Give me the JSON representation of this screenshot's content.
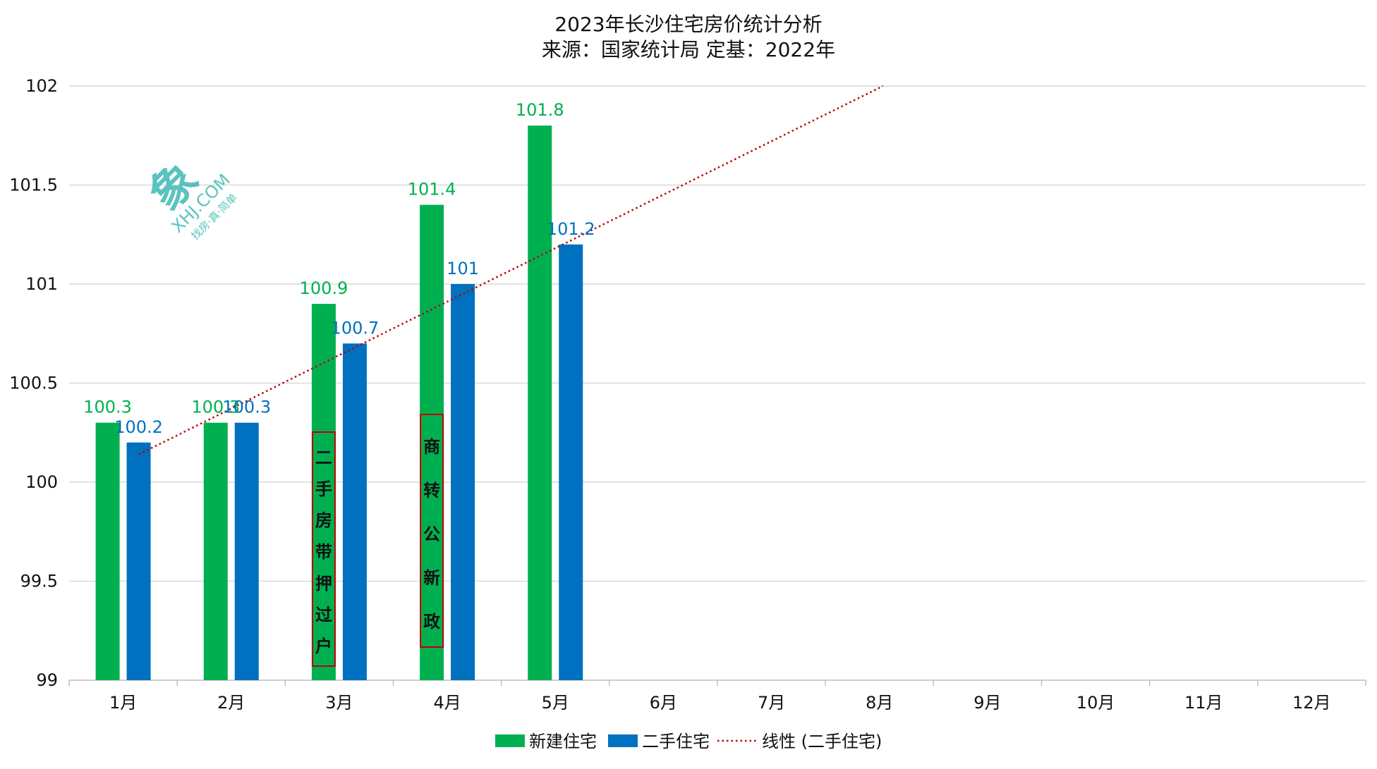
{
  "chart_data": {
    "type": "bar",
    "title": "2023年长沙住宅房价统计分析",
    "subtitle": "来源：国家统计局 定基：2022年",
    "categories": [
      "1月",
      "2月",
      "3月",
      "4月",
      "5月",
      "6月",
      "7月",
      "8月",
      "9月",
      "10月",
      "11月",
      "12月"
    ],
    "series": [
      {
        "name": "新建住宅",
        "color": "#00b050",
        "values": [
          100.3,
          100.3,
          100.9,
          101.4,
          101.8,
          null,
          null,
          null,
          null,
          null,
          null,
          null
        ]
      },
      {
        "name": "二手住宅",
        "color": "#0070c0",
        "values": [
          100.2,
          100.3,
          100.7,
          101.0,
          101.2,
          null,
          null,
          null,
          null,
          null,
          null,
          null
        ]
      }
    ],
    "data_labels": {
      "新建住宅": [
        "100.3",
        "100.3",
        "100.9",
        "101.4",
        "101.8"
      ],
      "二手住宅": [
        "100.2",
        "100.3",
        "100.7",
        "101",
        "101.2"
      ]
    },
    "trendline": {
      "name": "线性 (二手住宅)",
      "type": "linear",
      "series": "二手住宅",
      "color": "#c00000",
      "style": "dotted"
    },
    "y_ticks": [
      "99",
      "99.5",
      "100",
      "100.5",
      "101",
      "101.5",
      "102"
    ],
    "ylim": [
      99,
      102
    ],
    "xlabel": "",
    "ylabel": "",
    "grid": true,
    "legend": "bottom-center",
    "annotations": [
      {
        "text": "二手房带押过户",
        "category": "3月"
      },
      {
        "text": "商转公新政",
        "category": "4月"
      }
    ],
    "watermark": {
      "logo": "象",
      "text": "XHJ.COM",
      "slogan": "找房·真·简单"
    }
  }
}
